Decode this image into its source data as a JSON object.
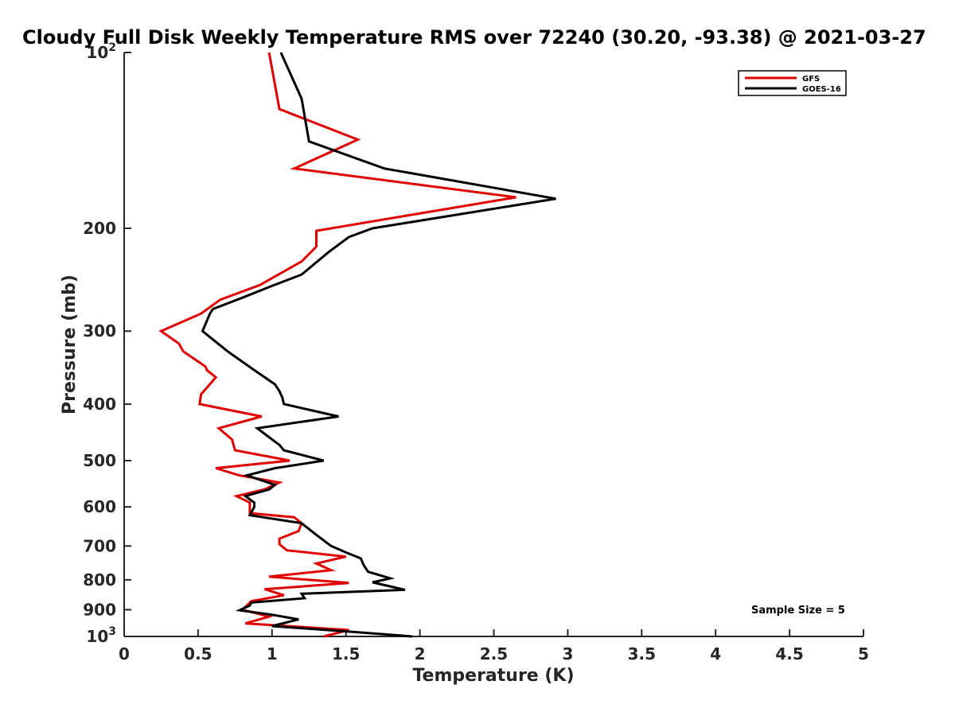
{
  "chart_data": {
    "type": "line",
    "title": "Cloudy Full Disk Weekly Temperature RMS over 72240 (30.20, -93.38) @ 2021-03-27",
    "xlabel": "Temperature (K)",
    "ylabel": "Pressure (mb)",
    "xlim": [
      0,
      5
    ],
    "ylim": [
      100,
      1000
    ],
    "yscale": "log",
    "y_reversed": true,
    "x_ticks": [
      "0",
      "0.5",
      "1",
      "1.5",
      "2",
      "2.5",
      "3",
      "3.5",
      "4",
      "4.5",
      "5"
    ],
    "x_tick_values": [
      0,
      0.5,
      1,
      1.5,
      2,
      2.5,
      3,
      3.5,
      4,
      4.5,
      5
    ],
    "y_ticks": [
      {
        "value": 100,
        "base": "10",
        "exp": "2"
      },
      {
        "value": 200,
        "label": "200"
      },
      {
        "value": 300,
        "label": "300"
      },
      {
        "value": 400,
        "label": "400"
      },
      {
        "value": 500,
        "label": "500"
      },
      {
        "value": 600,
        "label": "600"
      },
      {
        "value": 700,
        "label": "700"
      },
      {
        "value": 800,
        "label": "800"
      },
      {
        "value": 900,
        "label": "900"
      },
      {
        "value": 1000,
        "base": "10",
        "exp": "3"
      }
    ],
    "legend_position": "top-right",
    "grid": false,
    "annotation": "Sample Size = 5",
    "series": [
      {
        "name": "GFS",
        "color": "#e00000",
        "points": [
          [
            1.35,
            1000
          ],
          [
            1.52,
            975
          ],
          [
            0.82,
            950
          ],
          [
            0.98,
            925
          ],
          [
            0.8,
            900
          ],
          [
            0.86,
            870
          ],
          [
            1.08,
            850
          ],
          [
            0.95,
            830
          ],
          [
            1.52,
            810
          ],
          [
            0.98,
            790
          ],
          [
            1.4,
            770
          ],
          [
            1.3,
            750
          ],
          [
            1.5,
            730
          ],
          [
            1.1,
            712
          ],
          [
            1.05,
            695
          ],
          [
            1.05,
            680
          ],
          [
            1.18,
            660
          ],
          [
            1.2,
            640
          ],
          [
            1.15,
            625
          ],
          [
            0.85,
            615
          ],
          [
            0.85,
            590
          ],
          [
            0.76,
            575
          ],
          [
            0.95,
            560
          ],
          [
            1.05,
            545
          ],
          [
            0.78,
            530
          ],
          [
            0.62,
            515
          ],
          [
            1.12,
            500
          ],
          [
            0.75,
            480
          ],
          [
            0.73,
            460
          ],
          [
            0.64,
            440
          ],
          [
            0.93,
            420
          ],
          [
            0.51,
            400
          ],
          [
            0.52,
            385
          ],
          [
            0.56,
            375
          ],
          [
            0.62,
            360
          ],
          [
            0.56,
            350
          ],
          [
            0.55,
            345
          ],
          [
            0.4,
            325
          ],
          [
            0.37,
            315
          ],
          [
            0.25,
            300
          ],
          [
            0.52,
            280
          ],
          [
            0.65,
            265
          ],
          [
            0.92,
            250
          ],
          [
            1.03,
            241
          ],
          [
            1.2,
            228
          ],
          [
            1.3,
            215
          ],
          [
            1.3,
            202
          ],
          [
            2.65,
            177
          ],
          [
            1.15,
            158
          ],
          [
            1.58,
            141
          ],
          [
            1.05,
            125
          ],
          [
            0.98,
            100
          ]
        ]
      },
      {
        "name": "GOES-16",
        "color": "#000000",
        "points": [
          [
            1.95,
            1000
          ],
          [
            1.5,
            980
          ],
          [
            1.0,
            960
          ],
          [
            1.18,
            935
          ],
          [
            1.0,
            918
          ],
          [
            0.78,
            902
          ],
          [
            0.85,
            885
          ],
          [
            0.86,
            875
          ],
          [
            1.22,
            860
          ],
          [
            1.2,
            845
          ],
          [
            1.9,
            832
          ],
          [
            1.68,
            808
          ],
          [
            1.8,
            795
          ],
          [
            1.65,
            775
          ],
          [
            1.62,
            755
          ],
          [
            1.6,
            735
          ],
          [
            1.5,
            718
          ],
          [
            1.4,
            700
          ],
          [
            1.3,
            670
          ],
          [
            1.2,
            640
          ],
          [
            0.85,
            620
          ],
          [
            0.88,
            600
          ],
          [
            0.88,
            590
          ],
          [
            0.82,
            575
          ],
          [
            0.98,
            560
          ],
          [
            1.02,
            550
          ],
          [
            0.83,
            530
          ],
          [
            1.02,
            515
          ],
          [
            1.35,
            500
          ],
          [
            1.08,
            480
          ],
          [
            1.05,
            470
          ],
          [
            0.9,
            440
          ],
          [
            1.45,
            420
          ],
          [
            1.08,
            400
          ],
          [
            1.07,
            390
          ],
          [
            1.05,
            380
          ],
          [
            1.02,
            370
          ],
          [
            0.88,
            350
          ],
          [
            0.7,
            325
          ],
          [
            0.53,
            300
          ],
          [
            0.58,
            280
          ],
          [
            0.6,
            275
          ],
          [
            0.8,
            263
          ],
          [
            1.0,
            251
          ],
          [
            1.2,
            240
          ],
          [
            1.38,
            220
          ],
          [
            1.52,
            207
          ],
          [
            1.68,
            200
          ],
          [
            2.92,
            178
          ],
          [
            1.76,
            158
          ],
          [
            1.25,
            142
          ],
          [
            1.2,
            120
          ],
          [
            1.06,
            100
          ]
        ]
      }
    ]
  }
}
